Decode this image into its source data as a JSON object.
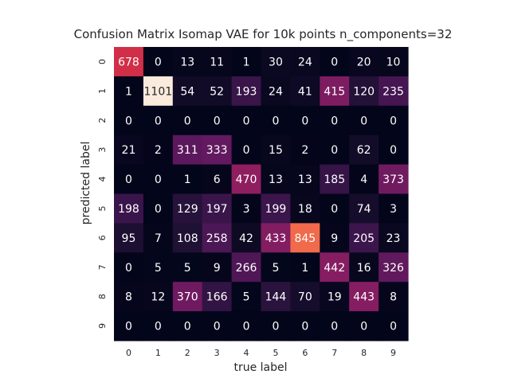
{
  "chart_data": {
    "type": "heatmap",
    "title": "Confusion Matrix Isomap VAE for 10k points n_components=32",
    "xlabel": "true label",
    "ylabel": "predicted label",
    "x_ticks": [
      "0",
      "1",
      "2",
      "3",
      "4",
      "5",
      "6",
      "7",
      "8",
      "9"
    ],
    "y_ticks": [
      "0",
      "1",
      "2",
      "3",
      "4",
      "5",
      "6",
      "7",
      "8",
      "9"
    ],
    "colorbar": false,
    "colormap": "rocket",
    "vmin": 0,
    "vmax": 1101,
    "values": [
      [
        678,
        0,
        13,
        11,
        1,
        30,
        24,
        0,
        20,
        10
      ],
      [
        1,
        1101,
        54,
        52,
        193,
        24,
        41,
        415,
        120,
        235
      ],
      [
        0,
        0,
        0,
        0,
        0,
        0,
        0,
        0,
        0,
        0
      ],
      [
        21,
        2,
        311,
        333,
        0,
        15,
        2,
        0,
        62,
        0
      ],
      [
        0,
        0,
        1,
        6,
        470,
        13,
        13,
        185,
        4,
        373
      ],
      [
        198,
        0,
        129,
        197,
        3,
        199,
        18,
        0,
        74,
        3
      ],
      [
        95,
        7,
        108,
        258,
        42,
        433,
        845,
        9,
        205,
        23
      ],
      [
        0,
        5,
        5,
        9,
        266,
        5,
        1,
        442,
        16,
        326
      ],
      [
        8,
        12,
        370,
        166,
        5,
        144,
        70,
        19,
        443,
        8
      ],
      [
        0,
        0,
        0,
        0,
        0,
        0,
        0,
        0,
        0,
        0
      ]
    ]
  }
}
